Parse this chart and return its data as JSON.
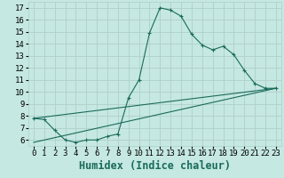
{
  "title": "",
  "xlabel": "Humidex (Indice chaleur)",
  "bg_color": "#c5e8e2",
  "line_color": "#1a6b5a",
  "grid_color": "#b0d0ca",
  "xlim": [
    -0.5,
    23.5
  ],
  "ylim": [
    5.5,
    17.5
  ],
  "xticks": [
    0,
    1,
    2,
    3,
    4,
    5,
    6,
    7,
    8,
    9,
    10,
    11,
    12,
    13,
    14,
    15,
    16,
    17,
    18,
    19,
    20,
    21,
    22,
    23
  ],
  "yticks": [
    6,
    7,
    8,
    9,
    10,
    11,
    12,
    13,
    14,
    15,
    16,
    17
  ],
  "series1_x": [
    0,
    1,
    2,
    3,
    4,
    5,
    6,
    7,
    8,
    9,
    10,
    11,
    12,
    13,
    14,
    15,
    16,
    17,
    18,
    19,
    20,
    21,
    22,
    23
  ],
  "series1_y": [
    7.8,
    7.7,
    6.8,
    6.0,
    5.8,
    6.0,
    6.0,
    6.3,
    6.5,
    9.5,
    11.0,
    14.9,
    17.0,
    16.8,
    16.3,
    14.8,
    13.9,
    13.5,
    13.8,
    13.1,
    11.8,
    10.7,
    10.3,
    10.3
  ],
  "line2_x0": 0,
  "line2_y0": 7.8,
  "line2_x1": 23,
  "line2_y1": 10.3,
  "line3_x0": 0,
  "line3_y0": 5.8,
  "line3_x1": 23,
  "line3_y1": 10.3,
  "font_family": "monospace",
  "xlabel_fontsize": 8.5,
  "tick_fontsize": 6.5
}
